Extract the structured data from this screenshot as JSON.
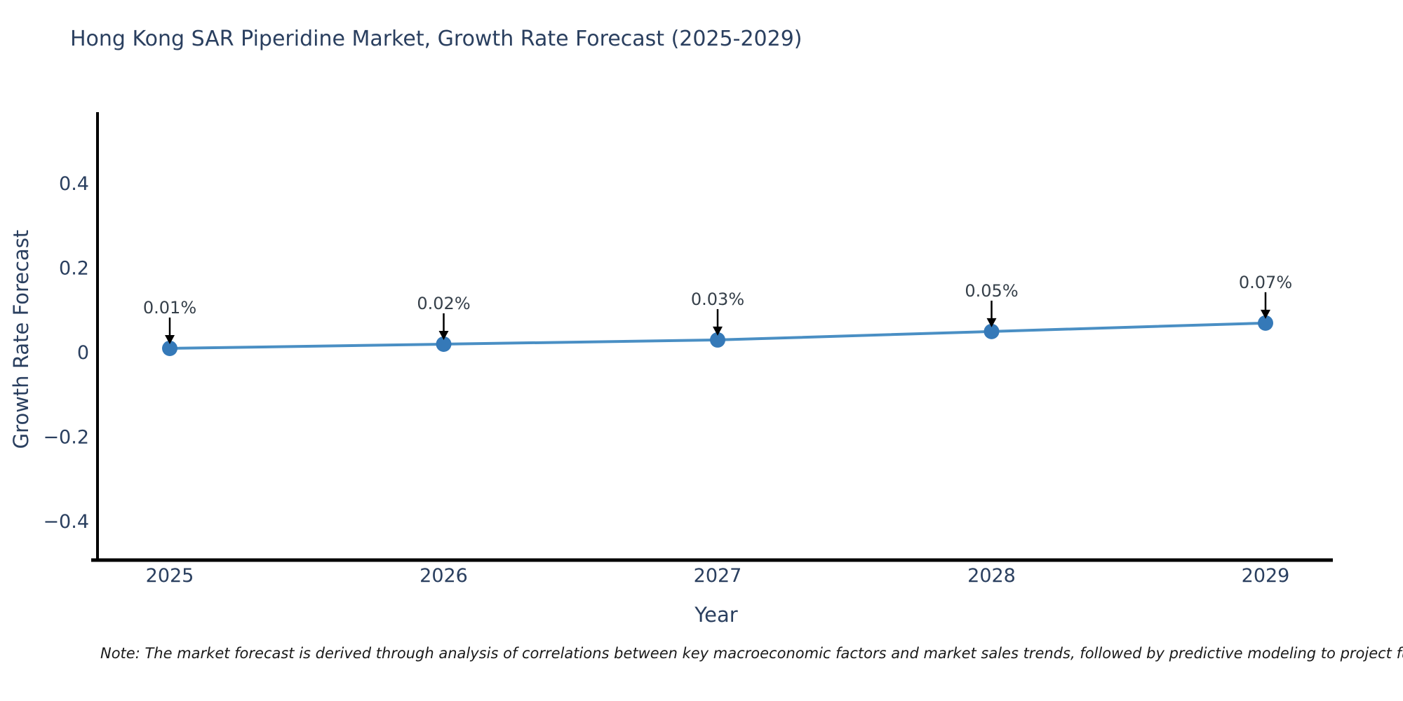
{
  "title": "Hong Kong SAR Piperidine Market, Growth Rate Forecast (2025-2029)",
  "note": "Note: The market forecast is derived through analysis of correlations between key macroeconomic factors and market sales trends, followed by predictive modeling to project future sa",
  "chart_data": {
    "type": "line",
    "x": [
      "2025",
      "2026",
      "2027",
      "2028",
      "2029"
    ],
    "series": [
      {
        "name": "Growth Rate Forecast",
        "values": [
          0.01,
          0.02,
          0.03,
          0.05,
          0.07
        ]
      }
    ],
    "point_labels": [
      "0.01%",
      "0.02%",
      "0.03%",
      "0.05%",
      "0.07%"
    ],
    "title": "Hong Kong SAR Piperidine Market, Growth Rate Forecast (2025-2029)",
    "xlabel": "Year",
    "ylabel": "Growth Rate Forecast",
    "ylim": [
      -0.5,
      0.57
    ],
    "yticks": [
      0.4,
      0.2,
      0,
      -0.2,
      -0.4
    ],
    "ytick_labels": [
      "0.4",
      "0.2",
      "0",
      "−0.2",
      "−0.4"
    ],
    "grid": false,
    "legend_position": "none",
    "line_color": "#4a8fc4",
    "marker_color": "#3579b8",
    "axis_color": "#000000",
    "text_color": "#2a3f5f",
    "annotation_arrow_color": "#000000"
  }
}
